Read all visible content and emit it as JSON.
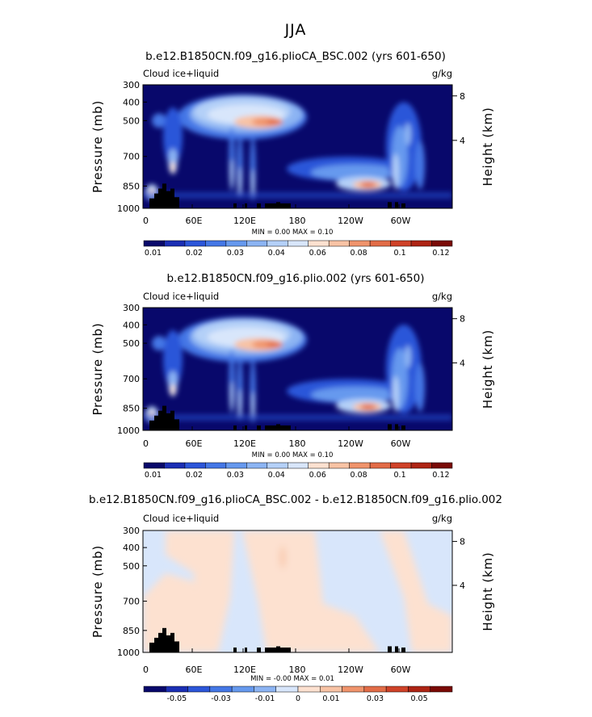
{
  "figure": {
    "title": "JJA"
  },
  "colors": {
    "palette": [
      "#08086b",
      "#1b2fb4",
      "#2c56d9",
      "#4477e6",
      "#6699ee",
      "#8cb4f3",
      "#b4d0f8",
      "#d8e6fb",
      "#fde1d0",
      "#f8c3a5",
      "#f0946c",
      "#e26c47",
      "#cf4228",
      "#ae2414",
      "#7a0a06"
    ],
    "terrain": "#000000"
  },
  "chart_data": [
    {
      "type": "heatmap",
      "title": "b.e12.B1850CN.f09_g16.plioCA_BSC.002 (yrs 601-650)",
      "left_label": "Cloud ice+liquid",
      "units": "g/kg",
      "ylabel": "Pressure (mb)",
      "y2label": "Height (km)",
      "xticks": [
        "0",
        "60E",
        "120E",
        "180",
        "120W",
        "60W"
      ],
      "yticks": [
        "300",
        "400",
        "500",
        "700",
        "850",
        "1000"
      ],
      "y2ticks": [
        "8",
        "4"
      ],
      "minmax_text": "MIN =    0.00   MAX =    0.10",
      "colorbar_labels": [
        "0.01",
        "0.02",
        "0.03",
        "0.04",
        "0.06",
        "0.08",
        "0.1",
        "0.12"
      ],
      "min": 0.0,
      "max": 0.1,
      "level_bounds": [
        0.005,
        0.01,
        0.015,
        0.02,
        0.025,
        0.03,
        0.035,
        0.04,
        0.05,
        0.06,
        0.07,
        0.08,
        0.09,
        0.1,
        0.11,
        0.12,
        0.13
      ]
    },
    {
      "type": "heatmap",
      "title": "b.e12.B1850CN.f09_g16.plio.002 (yrs 601-650)",
      "left_label": "Cloud ice+liquid",
      "units": "g/kg",
      "ylabel": "Pressure (mb)",
      "y2label": "Height (km)",
      "xticks": [
        "0",
        "60E",
        "120E",
        "180",
        "120W",
        "60W"
      ],
      "yticks": [
        "300",
        "400",
        "500",
        "700",
        "850",
        "1000"
      ],
      "y2ticks": [
        "8",
        "4"
      ],
      "minmax_text": "MIN =    0.00   MAX =    0.10",
      "colorbar_labels": [
        "0.01",
        "0.02",
        "0.03",
        "0.04",
        "0.06",
        "0.08",
        "0.1",
        "0.12"
      ],
      "min": 0.0,
      "max": 0.1,
      "level_bounds": [
        0.005,
        0.01,
        0.015,
        0.02,
        0.025,
        0.03,
        0.035,
        0.04,
        0.05,
        0.06,
        0.07,
        0.08,
        0.09,
        0.1,
        0.11,
        0.12,
        0.13
      ]
    },
    {
      "type": "heatmap",
      "title": "b.e12.B1850CN.f09_g16.plioCA_BSC.002 - b.e12.B1850CN.f09_g16.plio.002",
      "left_label": "Cloud ice+liquid",
      "units": "g/kg",
      "ylabel": "Pressure (mb)",
      "y2label": "Height (km)",
      "xticks": [
        "0",
        "60E",
        "120E",
        "180",
        "120W",
        "60W"
      ],
      "yticks": [
        "300",
        "400",
        "500",
        "700",
        "850",
        "1000"
      ],
      "y2ticks": [
        "8",
        "4"
      ],
      "minmax_text": "MIN =   -0.00   MAX =    0.01",
      "colorbar_labels": [
        "-0.05",
        "-0.03",
        "-0.01",
        "0",
        "0.01",
        "0.03",
        "0.05"
      ],
      "min": -0.0,
      "max": 0.01,
      "level_bounds": [
        -0.06,
        -0.05,
        -0.04,
        -0.03,
        -0.02,
        -0.01,
        -0.005,
        0,
        0.005,
        0.01,
        0.02,
        0.03,
        0.04,
        0.05,
        0.06
      ]
    }
  ]
}
